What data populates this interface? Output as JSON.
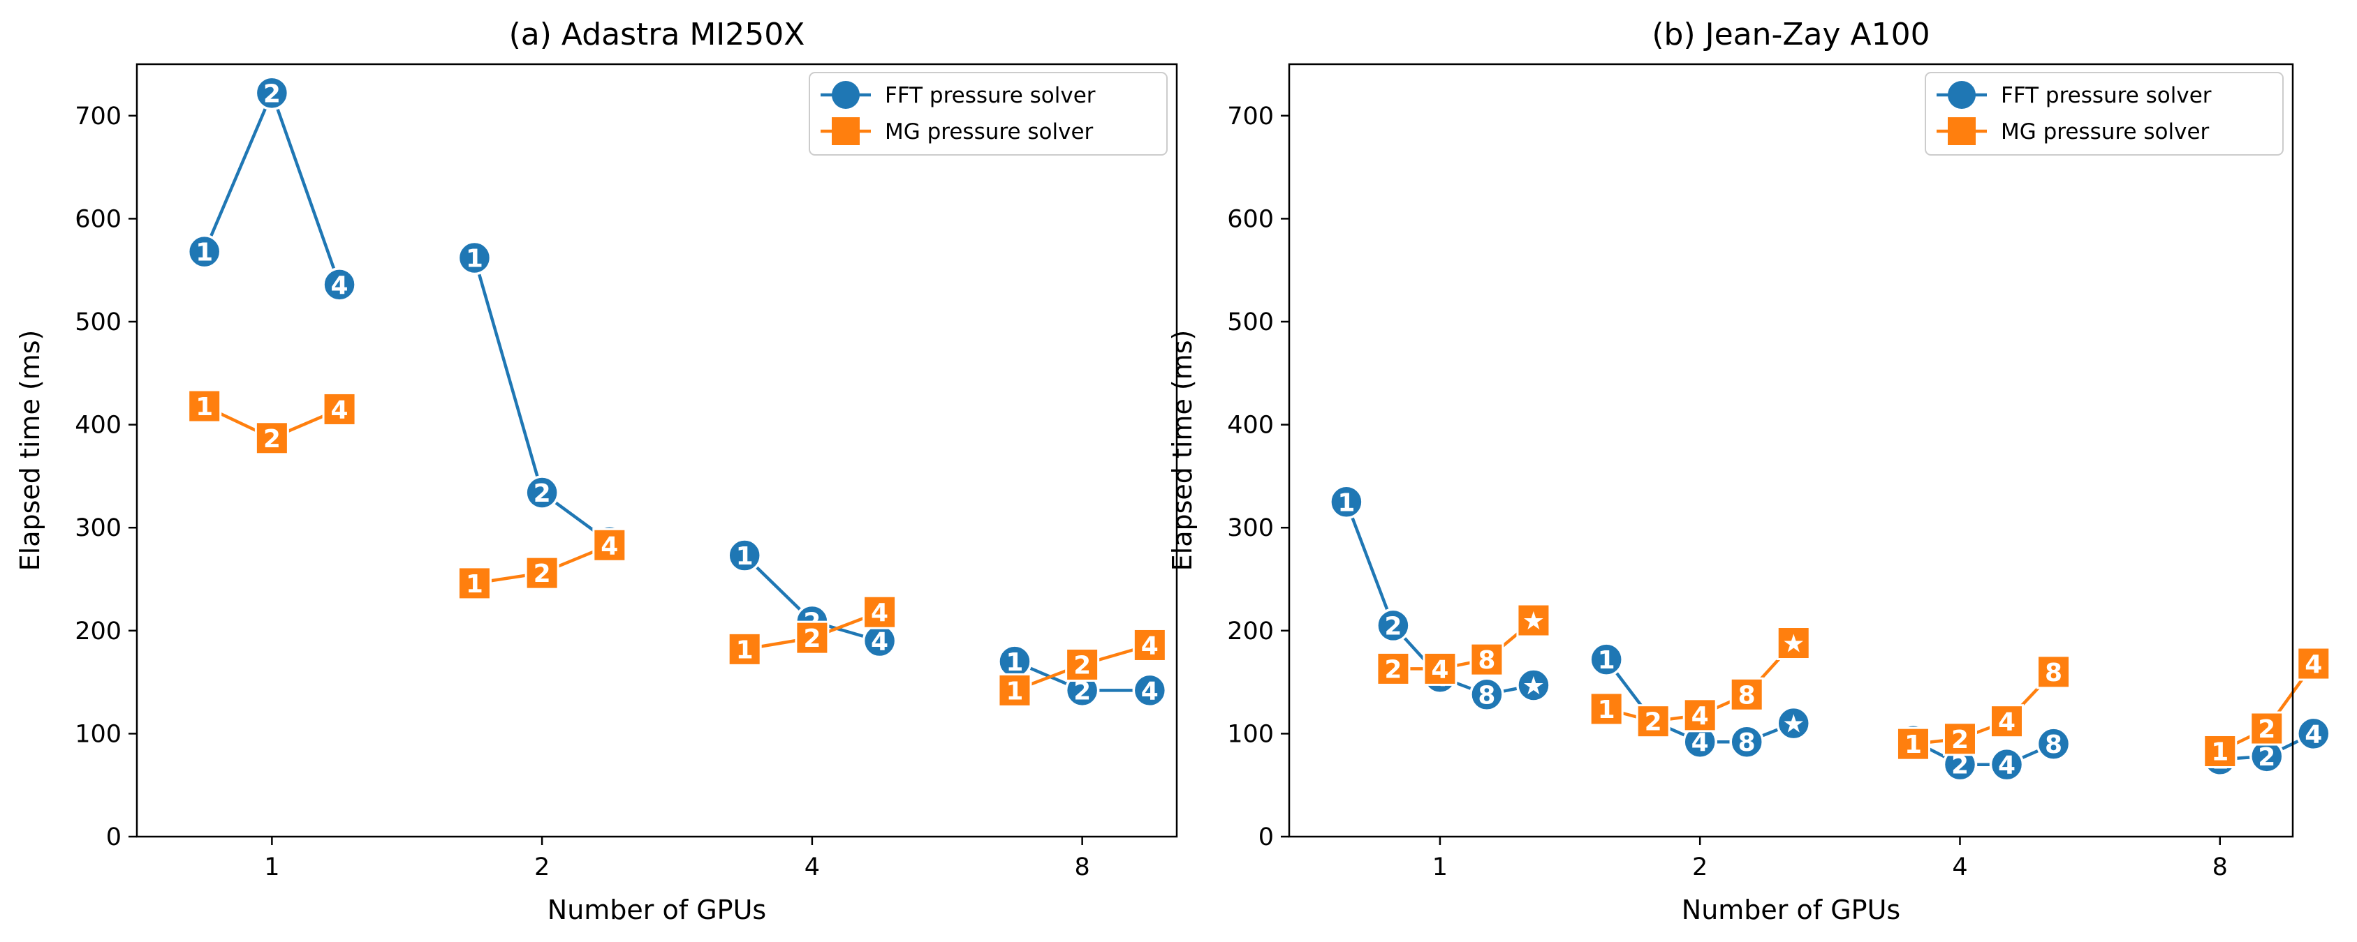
{
  "colors": {
    "fft": "#1f77b4",
    "mg": "#ff7f0e",
    "axis": "#000000",
    "marker_text": "#ffffff"
  },
  "legend": {
    "placement": "top-right",
    "entries": [
      {
        "name": "FFT pressure solver",
        "marker": "circle",
        "color": "#1f77b4"
      },
      {
        "name": "MG pressure solver",
        "marker": "square",
        "color": "#ff7f0e"
      }
    ]
  },
  "chart_data": [
    {
      "type": "line",
      "title": "(a) Adastra MI250X",
      "xlabel": "Number of GPUs",
      "ylabel": "Elapsed time (ms)",
      "ylim": [
        0,
        750
      ],
      "yticks": [
        0,
        100,
        200,
        300,
        400,
        500,
        600,
        700
      ],
      "categories": [
        "1",
        "2",
        "4",
        "8"
      ],
      "grid": false,
      "legend": "top-right",
      "offsets": [
        -0.25,
        0,
        0.25
      ],
      "series": [
        {
          "name": "FFT pressure solver",
          "marker": "circle",
          "groups": [
            {
              "gpus": "1",
              "points": [
                {
                  "label": "1",
                  "y": 568
                },
                {
                  "label": "2",
                  "y": 722
                },
                {
                  "label": "4",
                  "y": 536
                }
              ]
            },
            {
              "gpus": "2",
              "points": [
                {
                  "label": "1",
                  "y": 562
                },
                {
                  "label": "2",
                  "y": 334
                },
                {
                  "label": "4",
                  "y": 286
                }
              ]
            },
            {
              "gpus": "4",
              "points": [
                {
                  "label": "1",
                  "y": 273
                },
                {
                  "label": "2",
                  "y": 209
                },
                {
                  "label": "4",
                  "y": 190
                }
              ]
            },
            {
              "gpus": "8",
              "points": [
                {
                  "label": "1",
                  "y": 170
                },
                {
                  "label": "2",
                  "y": 142
                },
                {
                  "label": "4",
                  "y": 142
                }
              ]
            }
          ]
        },
        {
          "name": "MG pressure solver",
          "marker": "square",
          "groups": [
            {
              "gpus": "1",
              "points": [
                {
                  "label": "1",
                  "y": 418
                },
                {
                  "label": "2",
                  "y": 387
                },
                {
                  "label": "4",
                  "y": 415
                }
              ]
            },
            {
              "gpus": "2",
              "points": [
                {
                  "label": "1",
                  "y": 246
                },
                {
                  "label": "2",
                  "y": 256
                },
                {
                  "label": "4",
                  "y": 283
                }
              ]
            },
            {
              "gpus": "4",
              "points": [
                {
                  "label": "1",
                  "y": 182
                },
                {
                  "label": "2",
                  "y": 193
                },
                {
                  "label": "4",
                  "y": 218
                }
              ]
            },
            {
              "gpus": "8",
              "points": [
                {
                  "label": "1",
                  "y": 142
                },
                {
                  "label": "2",
                  "y": 167
                },
                {
                  "label": "4",
                  "y": 186
                }
              ]
            }
          ]
        }
      ]
    },
    {
      "type": "line",
      "title": "(b) Jean-Zay A100",
      "xlabel": "Number of GPUs",
      "ylabel": "Elapsed time (ms)",
      "ylim": [
        0,
        750
      ],
      "yticks": [
        0,
        100,
        200,
        300,
        400,
        500,
        600,
        700
      ],
      "categories": [
        "1",
        "2",
        "4",
        "8"
      ],
      "grid": false,
      "legend": "top-right",
      "offsets": [
        -0.36,
        -0.18,
        0,
        0.18,
        0.36
      ],
      "series": [
        {
          "name": "FFT pressure solver",
          "marker": "circle",
          "groups": [
            {
              "gpus": "1",
              "points": [
                {
                  "label": "1",
                  "y": 325
                },
                {
                  "label": "2",
                  "y": 205
                },
                {
                  "label": "4",
                  "y": 155
                },
                {
                  "label": "8",
                  "y": 138
                },
                {
                  "label": "★",
                  "y": 147
                }
              ]
            },
            {
              "gpus": "2",
              "points": [
                {
                  "label": "1",
                  "y": 172
                },
                {
                  "label": "2",
                  "y": 112
                },
                {
                  "label": "4",
                  "y": 92
                },
                {
                  "label": "8",
                  "y": 92
                },
                {
                  "label": "★",
                  "y": 110
                }
              ]
            },
            {
              "gpus": "4",
              "points": [
                {
                  "label": "1",
                  "y": 93
                },
                {
                  "label": "2",
                  "y": 70
                },
                {
                  "label": "4",
                  "y": 70
                },
                {
                  "label": "8",
                  "y": 90
                }
              ]
            },
            {
              "gpus": "8",
              "points": [
                {
                  "label": "1",
                  "y": 75
                },
                {
                  "label": "2",
                  "y": 78
                },
                {
                  "label": "4",
                  "y": 100
                }
              ]
            }
          ]
        },
        {
          "name": "MG pressure solver",
          "marker": "square",
          "groups": [
            {
              "gpus": "1",
              "points": [
                {
                  "label": "2",
                  "y": 163
                },
                {
                  "label": "4",
                  "y": 163
                },
                {
                  "label": "8",
                  "y": 172
                },
                {
                  "label": "★",
                  "y": 210
                }
              ]
            },
            {
              "gpus": "2",
              "points": [
                {
                  "label": "1",
                  "y": 124
                },
                {
                  "label": "2",
                  "y": 112
                },
                {
                  "label": "4",
                  "y": 118
                },
                {
                  "label": "8",
                  "y": 138
                },
                {
                  "label": "★",
                  "y": 188
                }
              ]
            },
            {
              "gpus": "4",
              "points": [
                {
                  "label": "1",
                  "y": 90
                },
                {
                  "label": "2",
                  "y": 95
                },
                {
                  "label": "4",
                  "y": 112
                },
                {
                  "label": "8",
                  "y": 160
                }
              ]
            },
            {
              "gpus": "8",
              "points": [
                {
                  "label": "1",
                  "y": 83
                },
                {
                  "label": "2",
                  "y": 105
                },
                {
                  "label": "4",
                  "y": 168
                }
              ]
            }
          ]
        }
      ]
    }
  ]
}
